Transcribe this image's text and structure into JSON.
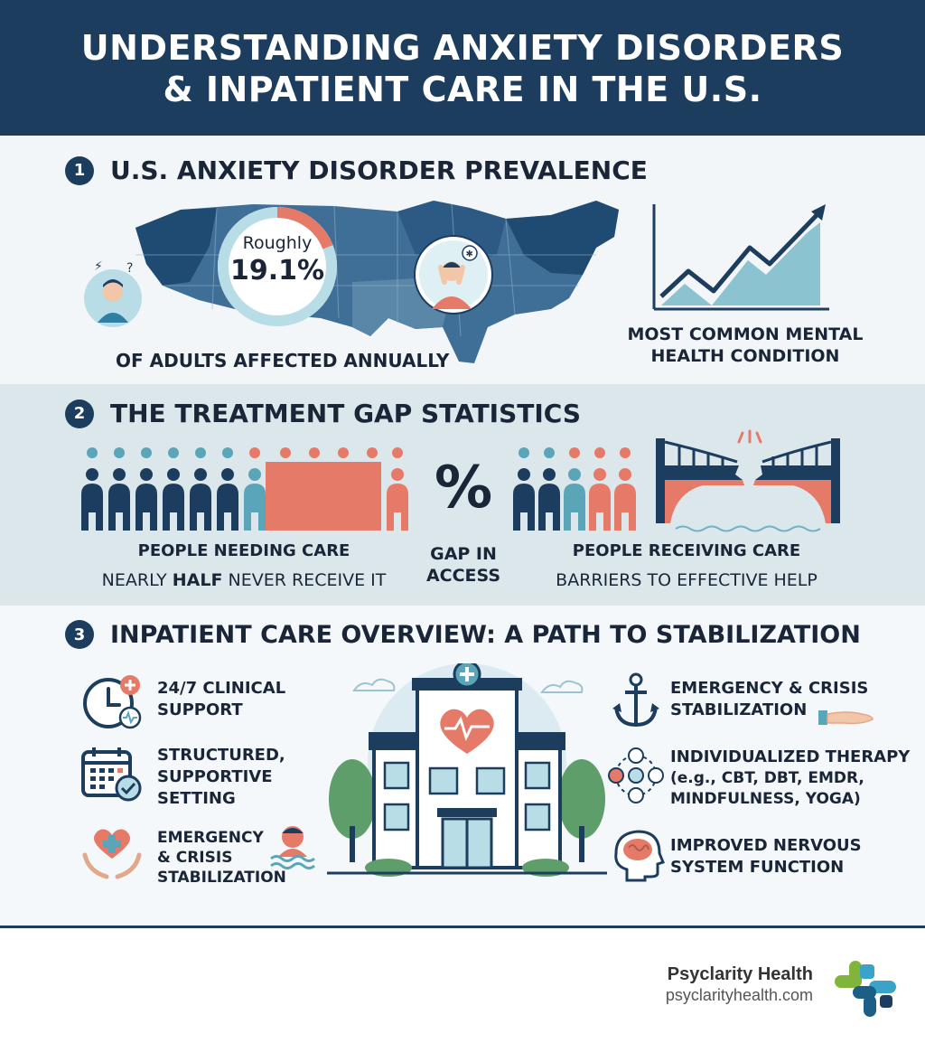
{
  "header": {
    "title": "UNDERSTANDING ANXIETY DISORDERS & INPATIENT CARE IN THE U.S."
  },
  "section1": {
    "number": "1",
    "title": "U.S. ANXIETY DISORDER PREVALENCE",
    "ring_prefix": "Roughly",
    "ring_value": "19.1%",
    "ring_fraction": 0.191,
    "caption": "OF ADULTS AFFECTED ANNUALLY",
    "trend_caption": "MOST COMMON MENTAL HEALTH CONDITION"
  },
  "section2": {
    "number": "2",
    "title": "THE TREATMENT GAP STATISTICS",
    "left_label": "PEOPLE NEEDING CARE",
    "left_sub_pre": "NEARLY ",
    "left_sub_bold": "HALF",
    "left_sub_post": " NEVER RECEIVE IT",
    "percent_symbol": "%",
    "gap_label": "GAP IN ACCESS",
    "right_label": "PEOPLE RECEIVING CARE",
    "right_sub": "BARRIERS TO EFFECTIVE HELP"
  },
  "section3": {
    "number": "3",
    "title": "INPATIENT CARE OVERVIEW: A PATH TO STABILIZATION",
    "left_items": [
      {
        "label": "24/7 CLINICAL SUPPORT",
        "icon": "clock-icon"
      },
      {
        "label": "STRUCTURED, SUPPORTIVE SETTING",
        "icon": "calendar-icon"
      },
      {
        "label": "EMERGENCY & CRISIS STABILIZATION",
        "icon": "heart-hands-icon"
      }
    ],
    "right_items": [
      {
        "label": "EMERGENCY & CRISIS STABILIZATION",
        "icon": "anchor-icon"
      },
      {
        "label": "INDIVIDUALIZED THERAPY",
        "detail": "(e.g., CBT, DBT, EMDR, MINDFULNESS, YOGA)",
        "icon": "therapy-cycle-icon"
      },
      {
        "label": "IMPROVED NERVOUS SYSTEM FUNCTION",
        "icon": "brain-icon"
      }
    ]
  },
  "footer": {
    "brand": "Psyclarity Health",
    "url": "psyclarityhealth.com"
  },
  "colors": {
    "navy": "#1d3d5e",
    "teal": "#5aa6b8",
    "coral": "#e57a68",
    "green": "#7fb53a"
  }
}
